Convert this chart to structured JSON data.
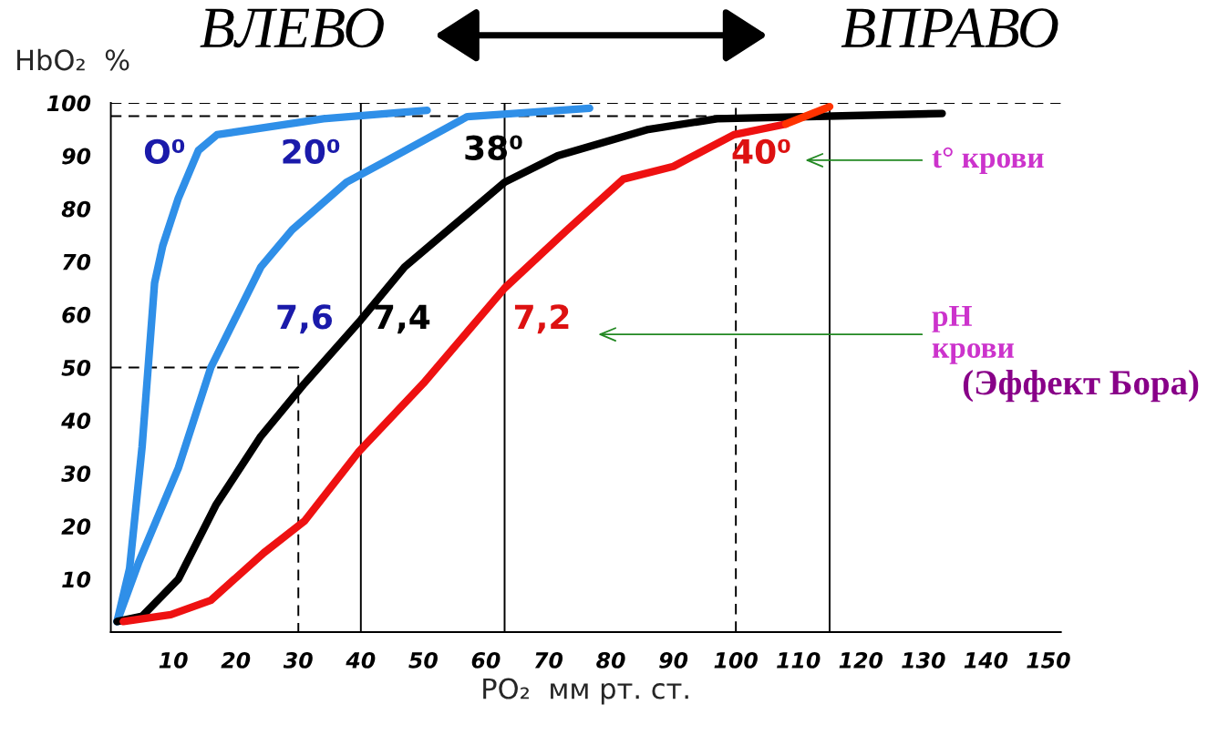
{
  "chart_data": {
    "type": "line",
    "xlabel": "PO₂  мм рт. ст.",
    "ylabel": "HbO₂  %",
    "xlim": [
      0,
      152
    ],
    "ylim": [
      0,
      100
    ],
    "xticks": [
      10,
      20,
      30,
      40,
      50,
      60,
      70,
      80,
      90,
      100,
      110,
      120,
      130,
      140,
      150
    ],
    "yticks": [
      10,
      20,
      30,
      40,
      50,
      60,
      70,
      80,
      90,
      100
    ],
    "grid": false,
    "legend": false,
    "series": [
      {
        "color": "#2f8fe8",
        "x": [
          1,
          3,
          5,
          7,
          8.3,
          10.8,
          14,
          17,
          34,
          50.6
        ],
        "values": [
          2,
          12,
          35,
          66,
          73,
          82,
          91,
          94,
          97,
          98.6
        ]
      },
      {
        "color": "#2f8fe8",
        "x": [
          1,
          4.4,
          10.8,
          16,
          24,
          29,
          37.7,
          44,
          57,
          76.6
        ],
        "values": [
          2,
          13,
          31,
          50,
          69,
          76,
          85,
          89,
          97.4,
          99
        ]
      },
      {
        "color": "#000000",
        "x": [
          1,
          5,
          10.8,
          16.8,
          24,
          31,
          40,
          47,
          63,
          71.5,
          86,
          97,
          133
        ],
        "values": [
          2,
          3,
          10,
          24,
          37,
          47,
          59,
          69,
          85,
          90,
          95,
          97,
          98
        ]
      },
      {
        "color": "#ee1111",
        "x": [
          2,
          9.6,
          16,
          24.5,
          31,
          39.6,
          50,
          63,
          73,
          82,
          90,
          99.7,
          108
        ],
        "values": [
          2,
          3.3,
          6,
          15,
          21,
          34,
          47,
          65,
          76,
          85.6,
          88,
          94,
          96
        ]
      },
      {
        "color": "#ff3300",
        "x": [
          108,
          115
        ],
        "values": [
          96,
          99.3
        ]
      },
      {
        "color": "#000000",
        "line_style": "dashed",
        "x": [
          0,
          30,
          30
        ],
        "values": [
          50,
          50,
          0
        ]
      },
      {
        "color": "#000000",
        "line_style": "dashed",
        "x": [
          0,
          100
        ],
        "values": [
          97.5,
          97.5
        ]
      }
    ],
    "ref_lines": [
      {
        "axis": "y",
        "value": 100,
        "line_style": "dashed",
        "color": "#000000"
      },
      {
        "axis": "x",
        "value": 100,
        "line_style": "dashed",
        "color": "#000000"
      },
      {
        "axis": "x",
        "value": 40,
        "line_style": "solid",
        "color": "#000000"
      },
      {
        "axis": "x",
        "value": 63,
        "line_style": "solid",
        "color": "#000000"
      },
      {
        "axis": "x",
        "value": 115,
        "line_style": "solid",
        "color": "#000000"
      }
    ],
    "annotations": [
      "O⁰",
      "20⁰",
      "38⁰",
      "40⁰",
      "7,6",
      "7,4",
      "7,2",
      "ВЛЕВО",
      "ВПРАВО",
      "t° крови",
      "pH\nкрови",
      "(Эффект Бора)"
    ]
  }
}
